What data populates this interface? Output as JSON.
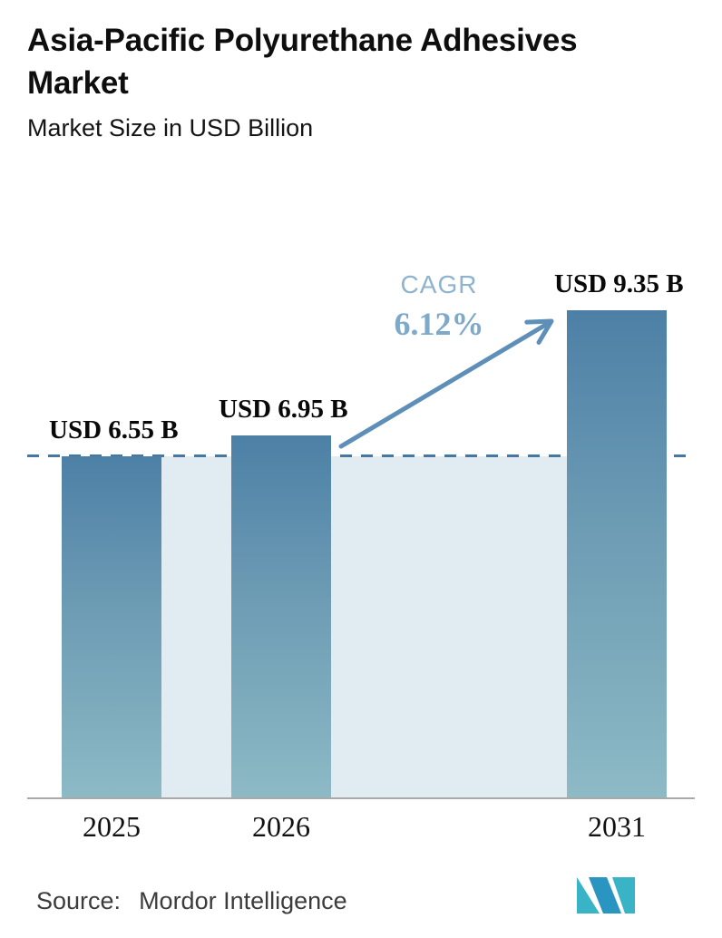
{
  "header": {
    "title": "Asia-Pacific Polyurethane Adhesives Market",
    "subtitle": "Market Size in USD Billion"
  },
  "chart_data": {
    "type": "bar",
    "title": "Asia-Pacific Polyurethane Adhesives Market",
    "ylabel": "Market Size in USD Billion",
    "categories": [
      "2025",
      "2026",
      "2031"
    ],
    "values": [
      6.55,
      6.95,
      9.35
    ],
    "value_labels": [
      "USD 6.55 B",
      "USD 6.95 B",
      "USD 9.35 B"
    ],
    "unit": "USD Billion",
    "annotations": {
      "cagr_label": "CAGR",
      "cagr_value": "6.12%"
    },
    "reference_line_value": 6.55,
    "grid": false,
    "legend": "none"
  },
  "bars": [
    {
      "label": "USD 6.55 B",
      "year": "2025",
      "value": 6.55
    },
    {
      "label": "USD 6.95 B",
      "year": "2026",
      "value": 6.95
    },
    {
      "label": "USD 9.35 B",
      "year": "2031",
      "value": 9.35
    }
  ],
  "cagr": {
    "label": "CAGR",
    "value": "6.12%"
  },
  "footer": {
    "source_label": "Source:",
    "source_value": "Mordor Intelligence",
    "logo": "mordor-intelligence-logo"
  },
  "colors": {
    "bar_top": "#4d80a6",
    "bar_bottom": "#8dbac5",
    "reference_band": "#e0ebf2",
    "dash_line": "#4478a3",
    "arrow": "#5e8fb8",
    "cagr_text": "#7fa9c9",
    "axis_line": "#a9a9a9",
    "logo_teal": "#39b4c7",
    "logo_blue": "#2a95c0"
  }
}
